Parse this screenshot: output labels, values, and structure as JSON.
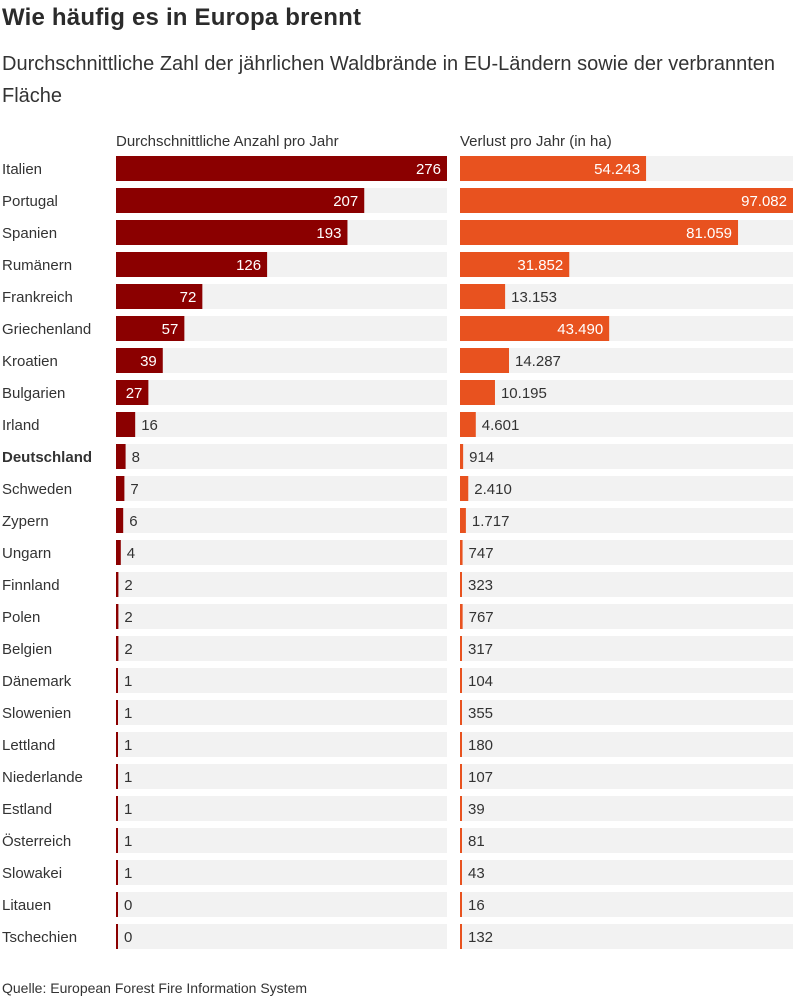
{
  "title": "Wie häufig es in Europa brennt",
  "subtitle": "Durchschnittliche Zahl der jährlichen Waldbrände in EU-Ländern sowie der verbrannten Fläche",
  "source": "Quelle: European Forest Fire Information System",
  "colors": {
    "left_bar": "#8b0000",
    "right_bar": "#e8521f",
    "track": "#f2f2f2",
    "text": "#333333",
    "label_inside": "#ffffff"
  },
  "chart_data": {
    "type": "bar",
    "orientation": "horizontal",
    "highlighted_category": "Deutschland",
    "categories": [
      "Italien",
      "Portugal",
      "Spanien",
      "Rumänern",
      "Frankreich",
      "Griechenland",
      "Kroatien",
      "Bulgarien",
      "Irland",
      "Deutschland",
      "Schweden",
      "Zypern",
      "Ungarn",
      "Finnland",
      "Polen",
      "Belgien",
      "Dänemark",
      "Slowenien",
      "Lettland",
      "Niederlande",
      "Estland",
      "Österreich",
      "Slowakei",
      "Litauen",
      "Tschechien"
    ],
    "series": [
      {
        "name": "Durchschnittliche Anzahl pro Jahr",
        "values": [
          276,
          207,
          193,
          126,
          72,
          57,
          39,
          27,
          16,
          8,
          7,
          6,
          4,
          2,
          2,
          2,
          1,
          1,
          1,
          1,
          1,
          1,
          1,
          0,
          0
        ],
        "labels": [
          "276",
          "207",
          "193",
          "126",
          "72",
          "57",
          "39",
          "27",
          "16",
          "8",
          "7",
          "6",
          "4",
          "2",
          "2",
          "2",
          "1",
          "1",
          "1",
          "1",
          "1",
          "1",
          "1",
          "0",
          "0"
        ],
        "xlim": [
          0,
          276
        ]
      },
      {
        "name": "Verlust pro Jahr (in ha)",
        "values": [
          54243,
          97082,
          81059,
          31852,
          13153,
          43490,
          14287,
          10195,
          4601,
          914,
          2410,
          1717,
          747,
          323,
          767,
          317,
          104,
          355,
          180,
          107,
          39,
          81,
          43,
          16,
          132
        ],
        "labels": [
          "54.243",
          "97.082",
          "81.059",
          "31.852",
          "13.153",
          "43.490",
          "14.287",
          "10.195",
          "4.601",
          "914",
          "2.410",
          "1.717",
          "747",
          "323",
          "767",
          "317",
          "104",
          "355",
          "180",
          "107",
          "39",
          "81",
          "43",
          "16",
          "132"
        ],
        "xlim": [
          0,
          97082
        ]
      }
    ]
  }
}
